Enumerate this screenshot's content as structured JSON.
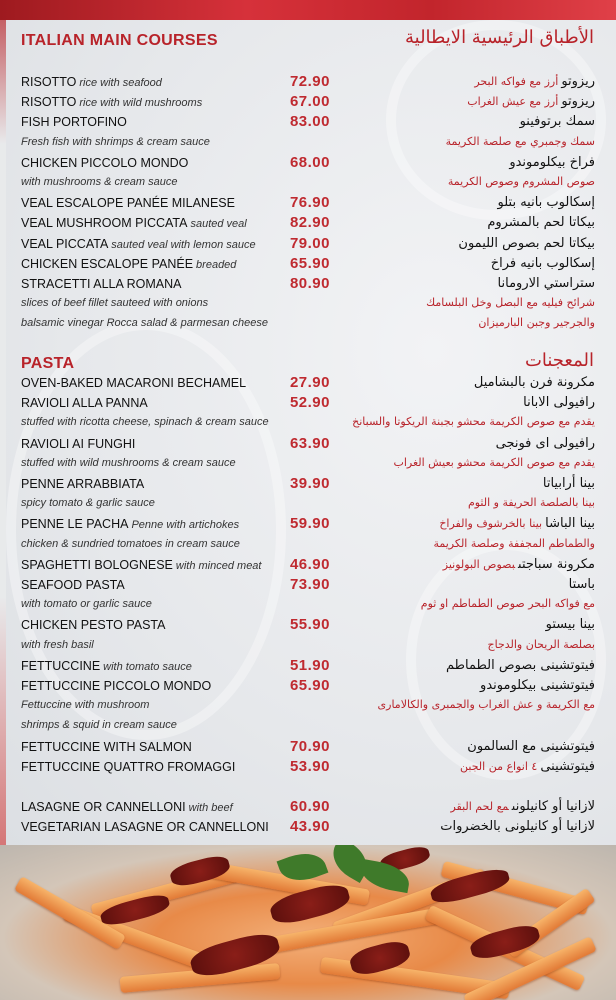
{
  "colors": {
    "accent": "#b8232a",
    "price": "#bf2a30",
    "background": "#e9ebee"
  },
  "main": {
    "heading": "ITALIAN MAIN COURSES",
    "heading_ar": "الأطباق الرئيسية الايطالية",
    "rows": [
      {
        "name": "RISOTTO",
        "desc": "rice with seafood",
        "price": "72.90",
        "ar_name": "ريزوتو",
        "ar_desc": "أرز مع فواكه البحر"
      },
      {
        "name": "RISOTTO",
        "desc": "rice with wild mushrooms",
        "price": "67.00",
        "ar_name": "ريزوتو",
        "ar_desc": "أرز مع عيش الغراب"
      },
      {
        "name": "FISH PORTOFINO",
        "price": "83.00",
        "ar_name": "سمك برتوفينو"
      },
      {
        "desc": "Fresh fish with shrimps & cream sauce",
        "ar_desc": "سمك وجمبري مع صلصة الكريمة"
      },
      {
        "name": "CHICKEN PICCOLO MONDO",
        "price": "68.00",
        "ar_name": "فراخ بيكلوموندو"
      },
      {
        "desc": "with mushrooms & cream sauce",
        "ar_desc": "صوص المشروم وصوص الكريمة"
      },
      {
        "name": "VEAL ESCALOPE PANÉE MILANESE",
        "price": "76.90",
        "ar_name": "إسكالوب بانيه بتلو"
      },
      {
        "name": "VEAL MUSHROOM PICCATA",
        "desc": "sauted veal",
        "price": "82.90",
        "ar_name": "بيكاتا لحم بالمشروم"
      },
      {
        "name": "VEAL PICCATA",
        "desc": "sauted veal with lemon sauce",
        "price": "79.00",
        "ar_name": "بيكاتا لحم بصوص الليمون"
      },
      {
        "name": "CHICKEN ESCALOPE PANÉE",
        "desc": "breaded",
        "price": "65.90",
        "ar_name": "إسكالوب بانيه فراخ"
      },
      {
        "name": "STRACETTI ALLA ROMANA",
        "price": "80.90",
        "ar_name": "ستراستي الارومانا"
      },
      {
        "desc": "slices of beef fillet sauteed with onions",
        "ar_desc": "شرائح فيليه مع البصل وخل البلسامك"
      },
      {
        "desc": "balsamic vinegar Rocca salad & parmesan cheese",
        "ar_desc": "والجرجير وجبن البارميزان"
      }
    ]
  },
  "pasta": {
    "heading": "PASTA",
    "heading_ar": "المعجنات",
    "rows": [
      {
        "name": "OVEN-BAKED MACARONI BECHAMEL",
        "price": "27.90",
        "ar_name": "مكرونة فرن بالبشاميل"
      },
      {
        "name": "RAVIOLI ALLA PANNA",
        "price": "52.90",
        "ar_name": "رافيولى الابانا"
      },
      {
        "desc": "stuffed with ricotta cheese, spinach & cream sauce",
        "ar_desc": "يقدم مع صوص الكريمة محشو بجبنة الريكوتا والسبانخ"
      },
      {
        "name": "RAVIOLI AI FUNGHI",
        "price": "63.90",
        "ar_name": "رافيولى اى فونجى"
      },
      {
        "desc": "stuffed with wild mushrooms & cream sauce",
        "ar_desc": "يقدم مع صوص الكريمة محشو بعيش الغراب"
      },
      {
        "name": "PENNE ARRABBIATA",
        "price": "39.90",
        "ar_name": "بينا أرابياتا"
      },
      {
        "desc": "spicy tomato & garlic sauce",
        "ar_desc": "بينا بالصلصة الحريفة و الثوم"
      },
      {
        "name": "PENNE LE PACHA",
        "desc": "Penne with artichokes",
        "price": "59.90",
        "ar_name": "بينا الباشا",
        "ar_desc": "بينا بالخرشوف والفراخ"
      },
      {
        "desc": "chicken & sundried tomatoes in cream sauce",
        "ar_desc": "والطماطم المجففة وصلصة الكريمة"
      },
      {
        "name": "SPAGHETTI BOLOGNESE",
        "desc": "with minced meat",
        "price": "46.90",
        "ar_name": "مكرونة سباجتى",
        "ar_desc": "بصوص البولونيز"
      },
      {
        "name": "SEAFOOD PASTA",
        "price": "73.90",
        "ar_name": "باستا"
      },
      {
        "desc": "with tomato or garlic sauce",
        "ar_desc": "مع فواكه البحر صوص الطماطم او ثوم"
      },
      {
        "name": "CHICKEN PESTO PASTA",
        "price": "55.90",
        "ar_name": "بينا بيستو"
      },
      {
        "desc": "with fresh basil",
        "ar_desc": "بصلصة الريحان والدجاج"
      },
      {
        "name": "FETTUCCINE",
        "desc": "with tomato sauce",
        "price": "51.90",
        "ar_name": "فيتوتشينى بصوص الطماطم"
      },
      {
        "name": "FETTUCCINE PICCOLO MONDO",
        "price": "65.90",
        "ar_name": "فيتوتشينى بيكلوموندو"
      },
      {
        "desc": "Fettuccine with mushroom",
        "ar_desc": "مع الكريمة و عش الغراب والجمبرى والكالامارى"
      },
      {
        "desc": " shrimps & squid in cream sauce"
      },
      {
        "name": "FETTUCCINE WITH SALMON",
        "price": "70.90",
        "ar_name": "فيتوتشينى مع السالمون"
      },
      {
        "name": "FETTUCCINE QUATTRO FROMAGGI",
        "price": "53.90",
        "ar_name": "فيتوتشينى",
        "ar_desc": "٤ انواع من الجبن"
      },
      {},
      {
        "name": "LASAGNE OR CANNELLONI",
        "desc": "with beef",
        "price": "60.90",
        "ar_name": "لازانيا أو كانيلونى",
        "ar_desc": "مع لحم البقر"
      },
      {
        "name": "VEGETARIAN LASAGNE OR CANNELLONI",
        "price": "43.90",
        "ar_name": "لازانيا أو كانيلونى بالخضروات"
      }
    ]
  },
  "photo": {
    "icon": "pasta-dish-photo"
  }
}
